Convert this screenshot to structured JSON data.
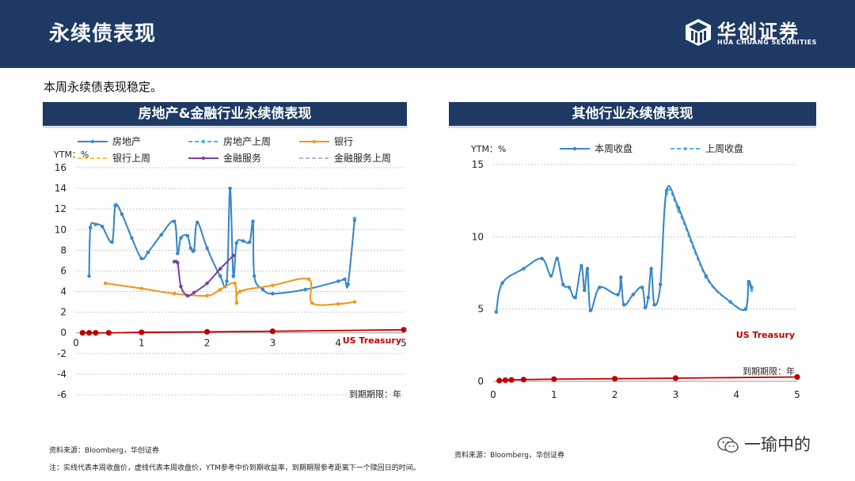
{
  "header": {
    "title": "永续债表现"
  },
  "logo": {
    "cn": "华创证券",
    "en": "HUA CHUANG SECURITIES"
  },
  "intro": "本周永续债表现稳定。",
  "panels": {
    "left_title": "房地产&金融行业永续债表现",
    "right_title": "其他行业永续债表现"
  },
  "sources": {
    "left": "资料来源：Bloomberg，华创证券",
    "right": "资料来源：Bloomberg，华创证券"
  },
  "note": "注：实线代表本周收盘价，虚线代表本周收盘价，YTM参考中价到期收益率，到期期限参考距离下一个赎回日的时间。",
  "watermark": "一瑜中的",
  "chart_data": [
    {
      "type": "line",
      "title": "房地产&金融行业永续债表现",
      "ylabel": "YTM：%",
      "xlabel": "到期期限：年",
      "xlim": [
        0,
        5
      ],
      "ylim": [
        -6,
        16
      ],
      "xticks": [
        0,
        1,
        2,
        3,
        4,
        5
      ],
      "yticks": [
        -6,
        -4,
        -2,
        0,
        2,
        4,
        6,
        8,
        10,
        12,
        14,
        16
      ],
      "annotation": "US Treasury",
      "series": [
        {
          "name": "房地产",
          "color": "#3a86c8",
          "dash": false,
          "points": [
            [
              0.2,
              5.5
            ],
            [
              0.22,
              10.2
            ],
            [
              0.3,
              10.5
            ],
            [
              0.4,
              10.3
            ],
            [
              0.55,
              8.8
            ],
            [
              0.6,
              12.3
            ],
            [
              0.7,
              11.5
            ],
            [
              0.85,
              9.2
            ],
            [
              1.0,
              7.2
            ],
            [
              1.1,
              7.8
            ],
            [
              1.3,
              9.5
            ],
            [
              1.5,
              10.8
            ],
            [
              1.55,
              7.7
            ],
            [
              1.6,
              9.2
            ],
            [
              1.7,
              9.4
            ],
            [
              1.75,
              8.2
            ],
            [
              1.8,
              8.0
            ],
            [
              1.85,
              10.7
            ],
            [
              2.0,
              8.2
            ],
            [
              2.2,
              5.5
            ],
            [
              2.3,
              5.0
            ],
            [
              2.35,
              14.0
            ],
            [
              2.4,
              5.5
            ],
            [
              2.45,
              8.7
            ],
            [
              2.55,
              8.9
            ],
            [
              2.65,
              8.8
            ],
            [
              2.7,
              10.8
            ],
            [
              2.72,
              5.5
            ],
            [
              2.85,
              4.2
            ],
            [
              3.0,
              3.8
            ],
            [
              3.5,
              4.2
            ],
            [
              4.0,
              5.0
            ],
            [
              4.1,
              5.2
            ],
            [
              4.15,
              4.7
            ],
            [
              4.25,
              10.9
            ]
          ]
        },
        {
          "name": "房地产上周",
          "color": "#4bb4e6",
          "dash": true,
          "points": [
            [
              0.2,
              5.5
            ],
            [
              0.22,
              10.2
            ],
            [
              0.3,
              10.5
            ],
            [
              0.4,
              10.3
            ],
            [
              0.55,
              8.8
            ],
            [
              0.6,
              12.4
            ],
            [
              0.7,
              11.5
            ],
            [
              0.85,
              9.2
            ],
            [
              1.0,
              7.2
            ],
            [
              1.1,
              7.8
            ],
            [
              1.3,
              9.5
            ],
            [
              1.5,
              10.8
            ],
            [
              1.55,
              7.7
            ],
            [
              1.6,
              9.2
            ],
            [
              1.7,
              9.4
            ],
            [
              1.75,
              8.2
            ],
            [
              1.8,
              8.0
            ],
            [
              1.85,
              10.7
            ],
            [
              2.0,
              8.2
            ],
            [
              2.2,
              5.5
            ],
            [
              2.3,
              5.0
            ],
            [
              2.35,
              14.0
            ],
            [
              2.4,
              5.5
            ],
            [
              2.45,
              8.7
            ],
            [
              2.55,
              8.9
            ],
            [
              2.65,
              8.8
            ],
            [
              2.7,
              10.8
            ],
            [
              2.72,
              5.5
            ],
            [
              2.85,
              4.2
            ],
            [
              3.0,
              3.8
            ],
            [
              3.5,
              4.2
            ],
            [
              4.0,
              5.0
            ],
            [
              4.1,
              5.2
            ],
            [
              4.15,
              4.7
            ],
            [
              4.25,
              11.1
            ]
          ]
        },
        {
          "name": "银行",
          "color": "#f0961e",
          "dash": false,
          "points": [
            [
              0.45,
              4.8
            ],
            [
              1.0,
              4.3
            ],
            [
              1.5,
              3.8
            ],
            [
              2.0,
              3.6
            ],
            [
              2.2,
              4.2
            ],
            [
              2.42,
              4.8
            ],
            [
              2.45,
              2.9
            ],
            [
              2.5,
              4.0
            ],
            [
              3.0,
              4.6
            ],
            [
              3.55,
              5.2
            ],
            [
              3.6,
              2.9
            ],
            [
              4.0,
              2.8
            ],
            [
              4.25,
              3.0
            ]
          ]
        },
        {
          "name": "银行上周",
          "color": "#f5c838",
          "dash": true,
          "points": [
            [
              0.45,
              4.8
            ],
            [
              1.0,
              4.3
            ],
            [
              1.5,
              3.8
            ],
            [
              2.0,
              3.6
            ],
            [
              2.2,
              4.2
            ],
            [
              2.42,
              4.8
            ],
            [
              2.45,
              2.9
            ],
            [
              2.5,
              4.0
            ],
            [
              3.0,
              4.6
            ],
            [
              3.55,
              5.2
            ],
            [
              3.6,
              2.9
            ],
            [
              4.0,
              2.8
            ],
            [
              4.25,
              3.0
            ]
          ]
        },
        {
          "name": "金融服务",
          "color": "#7b3fa6",
          "dash": false,
          "points": [
            [
              1.5,
              6.9
            ],
            [
              1.55,
              6.8
            ],
            [
              1.6,
              4.5
            ],
            [
              1.7,
              3.6
            ],
            [
              1.8,
              3.9
            ],
            [
              2.0,
              4.8
            ],
            [
              2.2,
              6.2
            ],
            [
              2.4,
              7.5
            ]
          ]
        },
        {
          "name": "金融服务上周",
          "color": "#b8b8b8",
          "dash": true,
          "points": [
            [
              1.5,
              6.9
            ],
            [
              1.55,
              6.8
            ],
            [
              1.6,
              4.5
            ],
            [
              1.7,
              3.6
            ],
            [
              1.8,
              3.9
            ],
            [
              2.0,
              4.8
            ],
            [
              2.2,
              6.2
            ],
            [
              2.4,
              7.5
            ]
          ]
        },
        {
          "name": "US Treasury",
          "color": "#c00000",
          "dash": false,
          "legend": false,
          "points": [
            [
              0.1,
              0.0
            ],
            [
              0.2,
              0.0
            ],
            [
              0.3,
              0.0
            ],
            [
              0.5,
              0.0
            ],
            [
              1.0,
              0.05
            ],
            [
              2.0,
              0.1
            ],
            [
              3.0,
              0.15
            ],
            [
              5.0,
              0.3
            ]
          ]
        }
      ]
    },
    {
      "type": "line",
      "title": "其他行业永续债表现",
      "ylabel": "YTM：%",
      "xlabel": "到期期限：年",
      "xlim": [
        0,
        5
      ],
      "ylim": [
        0,
        15
      ],
      "xticks": [
        0,
        1,
        2,
        3,
        4,
        5
      ],
      "yticks": [
        0,
        5,
        10,
        15
      ],
      "annotation": "US Treasury",
      "series": [
        {
          "name": "本周收盘",
          "color": "#3a86c8",
          "dash": false,
          "points": [
            [
              0.05,
              4.8
            ],
            [
              0.15,
              6.8
            ],
            [
              0.5,
              7.8
            ],
            [
              0.8,
              8.5
            ],
            [
              0.95,
              7.3
            ],
            [
              1.05,
              8.5
            ],
            [
              1.15,
              6.7
            ],
            [
              1.25,
              6.5
            ],
            [
              1.35,
              5.8
            ],
            [
              1.45,
              8.0
            ],
            [
              1.5,
              6.3
            ],
            [
              1.55,
              7.8
            ],
            [
              1.6,
              4.9
            ],
            [
              1.75,
              6.5
            ],
            [
              2.05,
              6.0
            ],
            [
              2.1,
              7.2
            ],
            [
              2.15,
              5.3
            ],
            [
              2.3,
              6.0
            ],
            [
              2.45,
              6.5
            ],
            [
              2.5,
              5.1
            ],
            [
              2.55,
              5.8
            ],
            [
              2.6,
              7.8
            ],
            [
              2.65,
              5.3
            ],
            [
              2.75,
              6.7
            ],
            [
              2.85,
              13.2
            ],
            [
              3.05,
              12.0
            ],
            [
              3.5,
              7.3
            ],
            [
              3.9,
              5.5
            ],
            [
              4.15,
              5.0
            ],
            [
              4.2,
              6.9
            ],
            [
              4.25,
              6.5
            ]
          ]
        },
        {
          "name": "上周收盘",
          "color": "#4bb4e6",
          "dash": true,
          "points": [
            [
              0.05,
              4.8
            ],
            [
              0.15,
              6.8
            ],
            [
              0.5,
              7.8
            ],
            [
              0.8,
              8.5
            ],
            [
              0.95,
              7.3
            ],
            [
              1.05,
              8.5
            ],
            [
              1.15,
              6.7
            ],
            [
              1.25,
              6.5
            ],
            [
              1.35,
              5.8
            ],
            [
              1.45,
              8.0
            ],
            [
              1.5,
              6.3
            ],
            [
              1.55,
              7.8
            ],
            [
              1.6,
              4.9
            ],
            [
              1.75,
              6.5
            ],
            [
              2.05,
              6.0
            ],
            [
              2.1,
              7.2
            ],
            [
              2.15,
              5.3
            ],
            [
              2.3,
              6.0
            ],
            [
              2.45,
              6.5
            ],
            [
              2.5,
              5.1
            ],
            [
              2.55,
              5.8
            ],
            [
              2.6,
              7.8
            ],
            [
              2.65,
              5.3
            ],
            [
              2.75,
              6.7
            ],
            [
              2.85,
              13.0
            ],
            [
              3.05,
              11.8
            ],
            [
              3.5,
              7.2
            ],
            [
              3.9,
              5.5
            ],
            [
              4.15,
              5.0
            ],
            [
              4.2,
              6.7
            ],
            [
              4.25,
              6.3
            ]
          ]
        },
        {
          "name": "US Treasury",
          "color": "#c00000",
          "dash": false,
          "legend": false,
          "points": [
            [
              0.1,
              0.05
            ],
            [
              0.2,
              0.08
            ],
            [
              0.3,
              0.1
            ],
            [
              0.5,
              0.12
            ],
            [
              1.0,
              0.15
            ],
            [
              2.0,
              0.18
            ],
            [
              3.0,
              0.22
            ],
            [
              5.0,
              0.3
            ]
          ]
        }
      ]
    }
  ]
}
